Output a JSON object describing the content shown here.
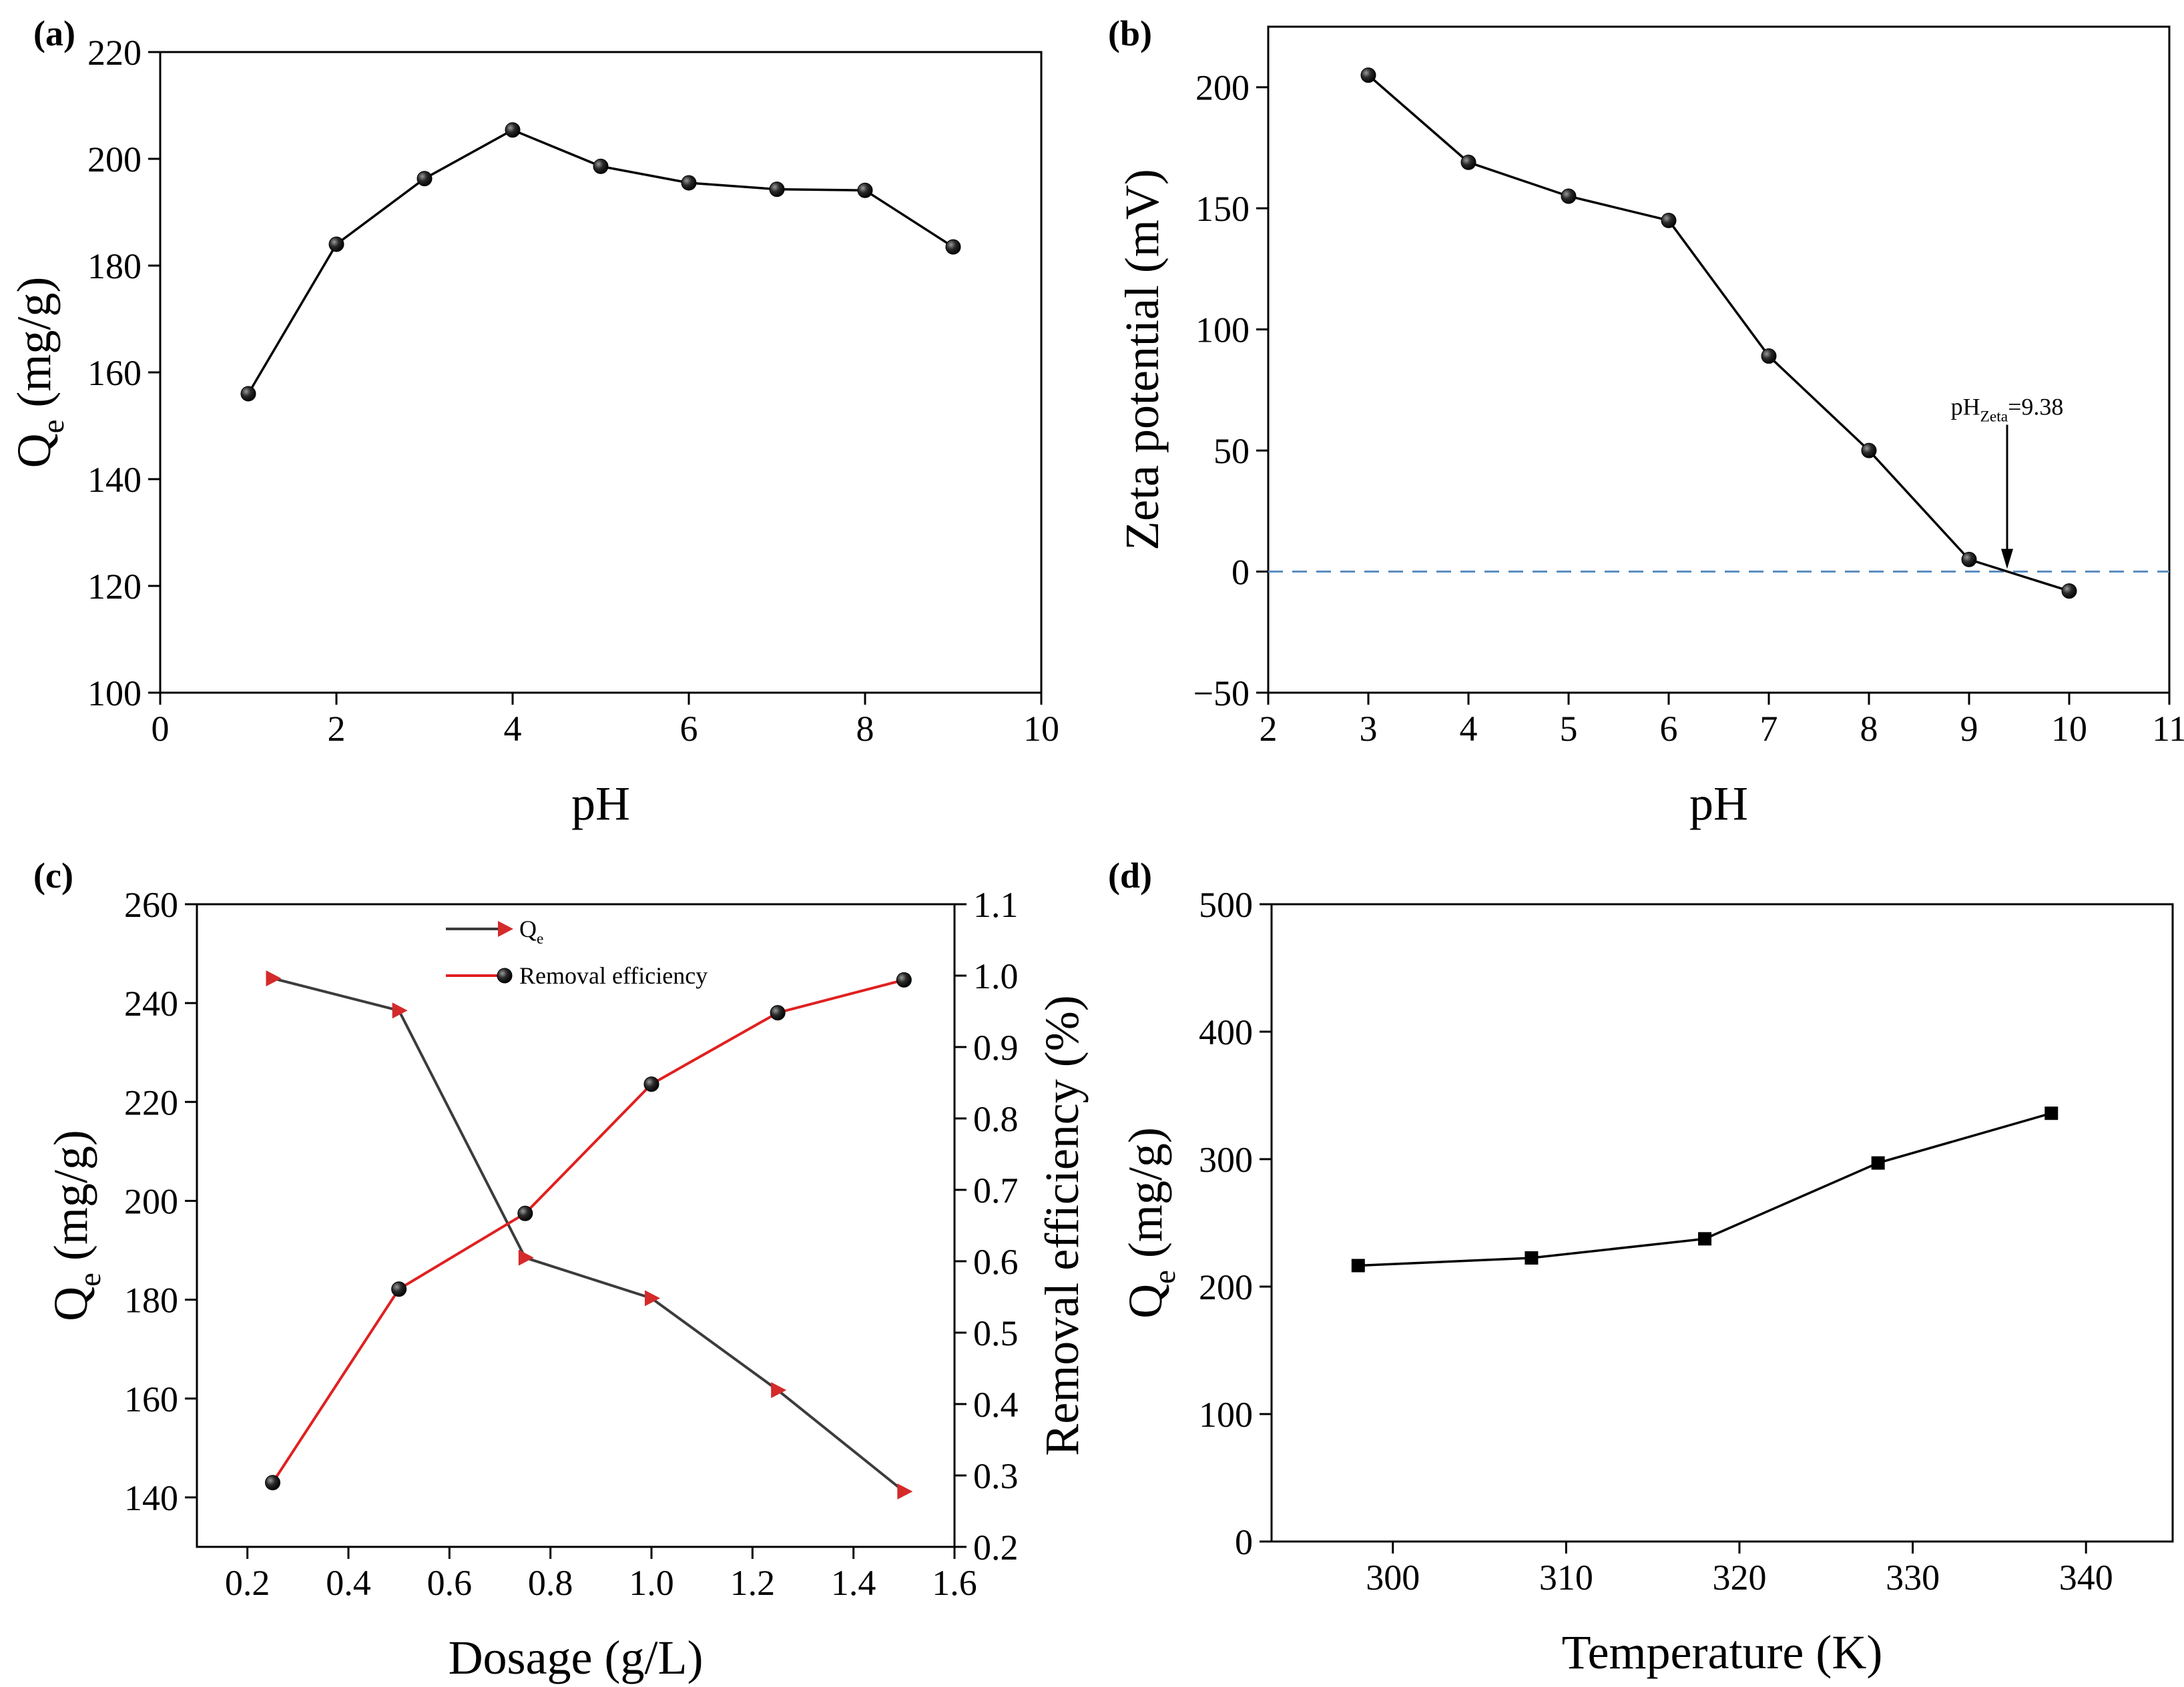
{
  "chart_data": [
    {
      "id": "a",
      "type": "line",
      "panel_label": "(a)",
      "title": "",
      "xlabel": "pH",
      "ylabel": {
        "main": "Q",
        "sub": "e",
        "rest": " (mg/g)"
      },
      "xlim": [
        0,
        10
      ],
      "ylim": [
        100,
        220
      ],
      "xticks": [
        0,
        2,
        4,
        6,
        8,
        10
      ],
      "yticks": [
        100,
        120,
        140,
        160,
        180,
        200,
        220
      ],
      "grid": false,
      "series": [
        {
          "name": "Qe",
          "marker": "circle",
          "color": "#000000",
          "x": [
            1,
            2,
            3,
            4,
            5,
            6,
            7,
            8,
            9
          ],
          "y": [
            156,
            184,
            196.3,
            205.4,
            198.6,
            195.5,
            194.3,
            194.1,
            183.5
          ]
        }
      ]
    },
    {
      "id": "b",
      "type": "line",
      "panel_label": "(b)",
      "title": "",
      "xlabel": "pH",
      "ylabel": "Zeta potential (mV)",
      "xlim": [
        2,
        11
      ],
      "ylim": [
        -50,
        225
      ],
      "xticks": [
        2,
        3,
        4,
        5,
        6,
        7,
        8,
        9,
        10,
        11
      ],
      "yticks": [
        -50,
        0,
        50,
        100,
        150,
        200
      ],
      "ytick_labels": [
        "−50",
        "0",
        "50",
        "100",
        "150",
        "200"
      ],
      "grid": false,
      "reference_line": {
        "y": 0,
        "style": "dashed",
        "color": "#5a8dc0"
      },
      "annotation": {
        "main": "pH",
        "sub": "Zeta",
        "rest": "=9.38",
        "x": 9.38
      },
      "series": [
        {
          "name": "Zeta potential",
          "marker": "circle",
          "color": "#000000",
          "x": [
            3,
            4,
            5,
            6,
            7,
            8,
            9,
            10
          ],
          "y": [
            205,
            169,
            155,
            145,
            89,
            50,
            5,
            -8
          ]
        }
      ]
    },
    {
      "id": "c",
      "type": "line",
      "panel_label": "(c)",
      "title": "",
      "xlabel": "Dosage (g/L)",
      "ylabel": {
        "main": "Q",
        "sub": "e",
        "rest": " (mg/g)"
      },
      "y2label": "Removal efficiency (%)",
      "xlim": [
        0.1,
        1.6
      ],
      "ylim": [
        130,
        260
      ],
      "y2lim": [
        0.2,
        1.1
      ],
      "xticks": [
        0.2,
        0.4,
        0.6,
        0.8,
        1.0,
        1.2,
        1.4,
        1.6
      ],
      "xtick_labels": [
        "0.2",
        "0.4",
        "0.6",
        "0.8",
        "1.0",
        "1.2",
        "1.4",
        "1.6"
      ],
      "yticks": [
        140,
        160,
        180,
        200,
        220,
        240,
        260
      ],
      "y2ticks": [
        0.2,
        0.3,
        0.4,
        0.5,
        0.6,
        0.7,
        0.8,
        0.9,
        1.0,
        1.1
      ],
      "y2tick_labels": [
        "0.2",
        "0.3",
        "0.4",
        "0.5",
        "0.6",
        "0.7",
        "0.8",
        "0.9",
        "1.0",
        "1.1"
      ],
      "grid": false,
      "legend_position": "top-center",
      "series": [
        {
          "name": "Qe",
          "legend": {
            "main": "Q",
            "sub": "e"
          },
          "axis": "left",
          "marker": "triangle-right",
          "line_color": "#3c3c3c",
          "marker_color": "#d42a2a",
          "x": [
            0.25,
            0.5,
            0.75,
            1.0,
            1.25,
            1.5
          ],
          "y": [
            245,
            238.5,
            188.5,
            180.3,
            161.7,
            141.2
          ]
        },
        {
          "name": "Removal efficiency",
          "legend": {
            "main": "Removal efficiency"
          },
          "axis": "right",
          "marker": "circle",
          "line_color": "#e02020",
          "marker_color": "#000000",
          "x": [
            0.25,
            0.5,
            0.75,
            1.0,
            1.25,
            1.5
          ],
          "y": [
            0.29,
            0.561,
            0.667,
            0.848,
            0.948,
            0.994
          ]
        }
      ]
    },
    {
      "id": "d",
      "type": "line",
      "panel_label": "(d)",
      "title": "",
      "xlabel": "Temperature (K)",
      "ylabel": {
        "main": "Q",
        "sub": "e",
        "rest": " (mg/g)"
      },
      "xlim": [
        293,
        345
      ],
      "ylim": [
        0,
        500
      ],
      "xticks": [
        300,
        310,
        320,
        330,
        340
      ],
      "yticks": [
        0,
        100,
        200,
        300,
        400,
        500
      ],
      "grid": false,
      "series": [
        {
          "name": "Qe",
          "marker": "square",
          "color": "#000000",
          "x": [
            298,
            308,
            318,
            328,
            338
          ],
          "y": [
            216.5,
            222.5,
            237.5,
            297,
            336
          ]
        }
      ]
    }
  ]
}
